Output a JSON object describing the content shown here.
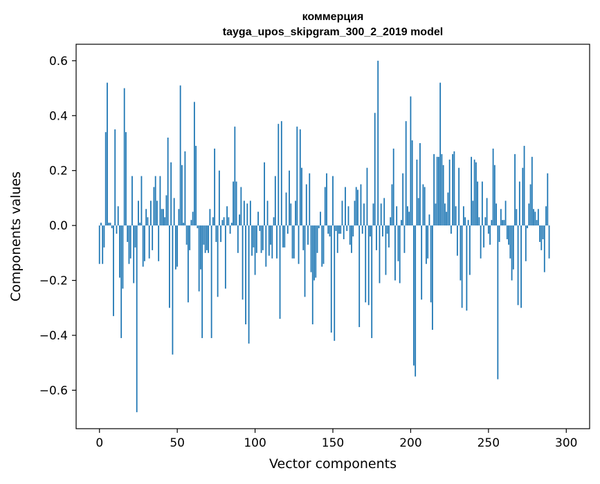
{
  "chart_data": {
    "type": "bar",
    "title_line1": "коммерция",
    "title_line2": "tayga_upos_skipgram_300_2_2019 model",
    "xlabel": "Vector components",
    "ylabel": "Components values",
    "xlim": [
      -15,
      315
    ],
    "ylim": [
      -0.74,
      0.66
    ],
    "xticks": [
      0,
      50,
      100,
      150,
      200,
      250,
      300
    ],
    "yticks": [
      -0.6,
      -0.4,
      -0.2,
      0.0,
      0.2,
      0.4,
      0.6
    ],
    "ytick_labels": [
      "−0.6",
      "−0.4",
      "−0.2",
      "0.0",
      "0.2",
      "0.4",
      "0.6"
    ],
    "bar_color": "#1f77b4",
    "grid": false,
    "values": [
      -0.14,
      0.01,
      -0.14,
      -0.08,
      0.34,
      0.52,
      0.01,
      0.01,
      -0.01,
      -0.33,
      0.35,
      -0.03,
      0.07,
      -0.19,
      -0.41,
      -0.23,
      0.5,
      0.34,
      -0.06,
      -0.14,
      -0.12,
      0.18,
      -0.21,
      -0.08,
      -0.68,
      0.09,
      0.01,
      0.18,
      -0.15,
      -0.13,
      0.06,
      0.03,
      -0.12,
      0.09,
      -0.09,
      0.14,
      0.18,
      0.09,
      -0.13,
      0.18,
      0.06,
      0.06,
      0.03,
      0.11,
      0.32,
      -0.3,
      0.23,
      -0.47,
      0.1,
      -0.16,
      -0.15,
      0.06,
      0.51,
      0.22,
      0.01,
      0.27,
      -0.07,
      -0.28,
      -0.09,
      0.02,
      0.05,
      0.45,
      0.29,
      -0.01,
      -0.24,
      -0.16,
      -0.41,
      -0.07,
      -0.1,
      -0.09,
      -0.1,
      0.06,
      -0.41,
      0.03,
      0.28,
      -0.06,
      -0.26,
      0.2,
      -0.06,
      0.02,
      0.03,
      -0.23,
      0.07,
      0.03,
      -0.03,
      0.01,
      0.16,
      0.36,
      0.16,
      -0.1,
      0.04,
      0.14,
      -0.27,
      0.09,
      -0.36,
      0.08,
      -0.43,
      0.09,
      -0.11,
      -0.08,
      -0.18,
      -0.1,
      0.05,
      -0.02,
      -0.1,
      -0.09,
      0.23,
      -0.15,
      0.09,
      -0.11,
      -0.07,
      -0.12,
      0.03,
      0.18,
      -0.12,
      0.37,
      -0.34,
      0.38,
      -0.08,
      -0.08,
      0.12,
      -0.03,
      0.2,
      0.08,
      -0.12,
      -0.12,
      0.09,
      0.36,
      -0.14,
      0.35,
      0.21,
      -0.09,
      -0.26,
      0.15,
      -0.07,
      0.19,
      -0.17,
      -0.36,
      -0.2,
      -0.19,
      -0.1,
      -0.01,
      0.05,
      -0.15,
      -0.14,
      0.14,
      0.19,
      -0.03,
      -0.04,
      -0.39,
      0.18,
      -0.42,
      -0.02,
      -0.1,
      -0.03,
      -0.03,
      0.09,
      -0.05,
      0.14,
      -0.02,
      0.07,
      -0.07,
      -0.1,
      -0.04,
      0.09,
      0.14,
      0.13,
      -0.37,
      0.15,
      -0.03,
      0.08,
      -0.28,
      0.21,
      -0.29,
      -0.04,
      -0.41,
      0.08,
      0.41,
      -0.09,
      0.6,
      -0.21,
      0.08,
      -0.04,
      0.1,
      -0.18,
      -0.03,
      -0.08,
      0.03,
      0.15,
      0.28,
      -0.2,
      0.07,
      -0.13,
      -0.21,
      0.02,
      0.19,
      -0.1,
      0.38,
      0.07,
      0.05,
      0.47,
      0.31,
      -0.51,
      -0.55,
      0.24,
      0.1,
      0.3,
      -0.27,
      0.15,
      0.14,
      -0.14,
      -0.12,
      0.04,
      -0.28,
      -0.38,
      0.26,
      0.08,
      0.25,
      0.25,
      0.52,
      0.26,
      0.22,
      0.08,
      0.05,
      0.12,
      0.24,
      -0.03,
      0.26,
      0.27,
      0.07,
      -0.11,
      0.21,
      -0.2,
      -0.3,
      0.07,
      0.03,
      -0.31,
      0.02,
      -0.18,
      0.25,
      0.09,
      0.24,
      0.23,
      0.16,
      0.03,
      -0.12,
      0.16,
      -0.08,
      0.03,
      0.1,
      -0.03,
      -0.07,
      0.02,
      0.28,
      0.22,
      0.08,
      -0.56,
      -0.06,
      0.06,
      0.02,
      0.02,
      0.09,
      -0.05,
      -0.07,
      -0.12,
      -0.2,
      -0.16,
      0.26,
      0.06,
      -0.29,
      0.16,
      -0.3,
      0.21,
      0.29,
      -0.13,
      -0.01,
      0.08,
      0.15,
      0.25,
      0.06,
      0.05,
      0.02,
      0.06,
      -0.06,
      -0.09,
      -0.05,
      -0.17,
      0.07,
      0.19,
      -0.12
    ]
  }
}
